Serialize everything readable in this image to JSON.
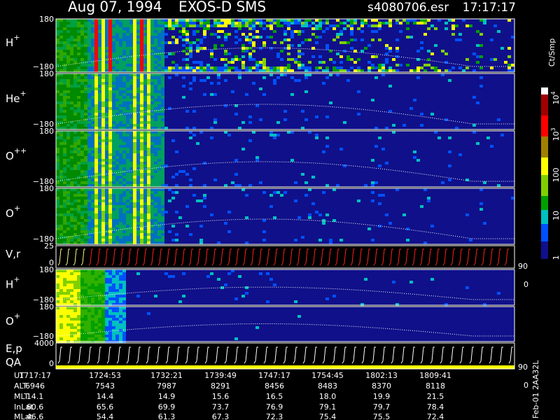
{
  "header": {
    "date": "Aug 07, 1994",
    "instrument": "EXOS-D SMS",
    "file": "s4080706.esr",
    "time": "17:17:17"
  },
  "panels": [
    {
      "label": "H",
      "sup": "+",
      "ticks": [
        "180",
        "−180"
      ]
    },
    {
      "label": "He",
      "sup": "+",
      "ticks": [
        "180",
        "−180"
      ]
    },
    {
      "label": "O",
      "sup": "++",
      "ticks": [
        "180",
        "−180"
      ]
    },
    {
      "label": "O",
      "sup": "+",
      "ticks": [
        "180",
        "−180"
      ]
    },
    {
      "label": "V,r",
      "ticks": [
        "25",
        "0"
      ],
      "right": [
        "90",
        "0"
      ]
    },
    {
      "label": "H",
      "sup": "+",
      "ticks": [
        "180",
        "−180"
      ]
    },
    {
      "label": "O",
      "sup": "+",
      "ticks": [
        "180",
        "−180"
      ]
    },
    {
      "label": "E,p",
      "label2": "QA",
      "ticks": [
        "4000",
        "0"
      ],
      "right": [
        "90",
        "0"
      ]
    }
  ],
  "colorbar": {
    "title": "Ct/Smp",
    "ticks": [
      {
        "text": "10",
        "exp": "4"
      },
      {
        "text": "10",
        "exp": "3"
      },
      {
        "text": "100"
      },
      {
        "text": "10"
      },
      {
        "text": "1"
      }
    ]
  },
  "table": {
    "rows": [
      [
        "UT",
        "1717:17",
        "1724:53",
        "1732:21",
        "1739:49",
        "1747:17",
        "1754:45",
        "1802:13",
        "1809:41"
      ],
      [
        "ALT",
        "6946",
        "7543",
        "7987",
        "8291",
        "8456",
        "8483",
        "8370",
        "8118"
      ],
      [
        "MLT",
        "14.1",
        "14.4",
        "14.9",
        "15.6",
        "16.5",
        "18.0",
        "19.9",
        "21.5"
      ],
      [
        "InLat",
        "60.6",
        "65.6",
        "69.9",
        "73.7",
        "76.9",
        "79.1",
        "79.7",
        "78.4"
      ],
      [
        "MLat",
        "46.6",
        "54.4",
        "61.3",
        "67.3",
        "72.3",
        "75.4",
        "75.5",
        "72.4"
      ]
    ]
  },
  "footer": "Feb-01 2AA32L"
}
